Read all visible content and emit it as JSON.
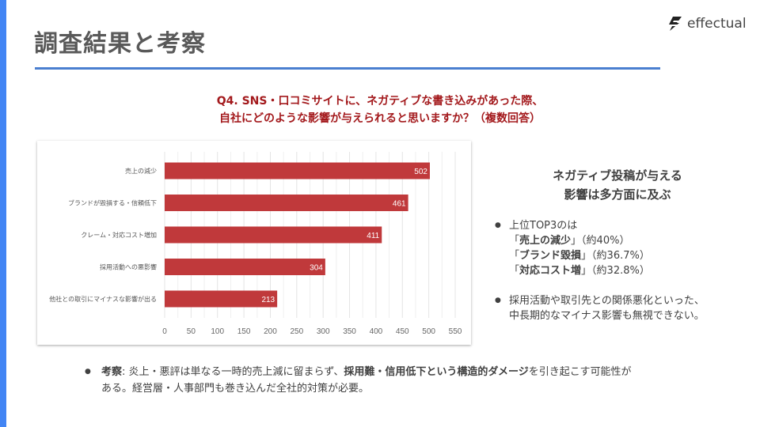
{
  "slide": {
    "title": "調査結果と考察",
    "logo_text": "effectual",
    "accent": "#4285f4"
  },
  "question": {
    "line1": "Q4.  SNS・口コミサイトに、ネガティブな書き込みがあった際、",
    "line2": "自社にどのような影響が与えられると思いますか？（複数回答）"
  },
  "chart_data": {
    "type": "bar",
    "orientation": "horizontal",
    "categories": [
      "売上の減少",
      "ブランドが毀損する・信頼低下",
      "クレーム・対応コスト増加",
      "採用活動への悪影響",
      "他社との取引にマイナスな影響が出る"
    ],
    "values": [
      502,
      461,
      411,
      304,
      213
    ],
    "xlim": [
      0,
      550
    ],
    "xticks": [
      0,
      50,
      100,
      150,
      200,
      250,
      300,
      350,
      400,
      450,
      500,
      550
    ],
    "grid": true,
    "bar_color": "#c0393b",
    "title": "",
    "xlabel": "",
    "ylabel": ""
  },
  "summary": {
    "heading_line1": "ネガティブ投稿が与える",
    "heading_line2": "影響は多方面に及ぶ",
    "bullet_symbol": "●",
    "b1_intro": "上位TOP3のは",
    "b1_items": [
      {
        "open": "「",
        "bold": "売上の減少",
        "close": "」",
        "pct": "（約40%）"
      },
      {
        "open": "「",
        "bold": "ブランド毀損",
        "close": "」",
        "pct": "（約36.7%）"
      },
      {
        "open": "「",
        "bold": "対応コスト増",
        "close": "」",
        "pct": "（約32.8%）"
      }
    ],
    "b2_line1": "採用活動や取引先との関係悪化といった、",
    "b2_line2": "中長期的なマイナス影響も無視できない。"
  },
  "conclusion": {
    "label": "考察",
    "sep": ":",
    "text1": " 炎上・悪評は単なる一時的売上減に留まらず、",
    "bold": "採用難・信用低下という構造的ダメージ",
    "text2": "を引き起こす可能性がある。経営層・人事部門も巻き込んだ全社的対策が必要。"
  }
}
